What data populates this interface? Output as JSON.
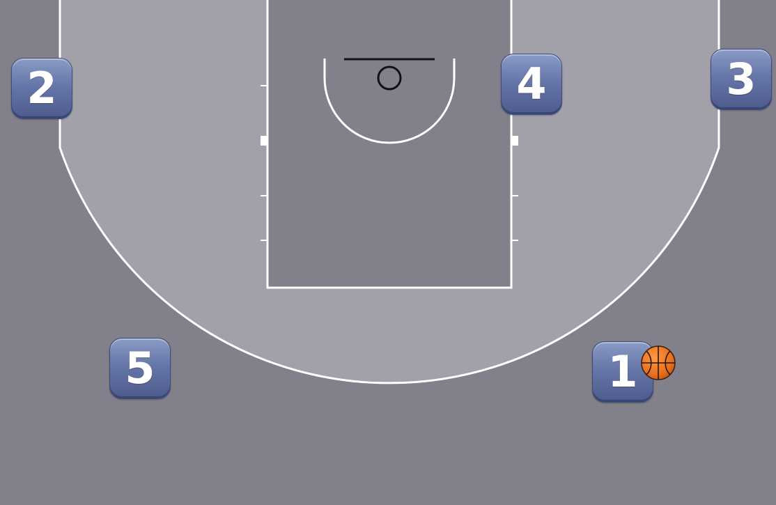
{
  "colors": {
    "out_of_bounds": "#82808b",
    "three_point_area": "#a2a1aa",
    "paint": "#82808b",
    "court_lines": "#ffffff",
    "rim_and_backboard": "#111111",
    "badge": "#6676a8",
    "ball": "#f07b2a"
  },
  "players": [
    {
      "number": "1",
      "has_ball": true
    },
    {
      "number": "2",
      "has_ball": false
    },
    {
      "number": "3",
      "has_ball": false
    },
    {
      "number": "4",
      "has_ball": false
    },
    {
      "number": "5",
      "has_ball": false
    }
  ],
  "icons": {
    "player_marker": "numbered-keycap-icon",
    "ball": "basketball-icon"
  }
}
